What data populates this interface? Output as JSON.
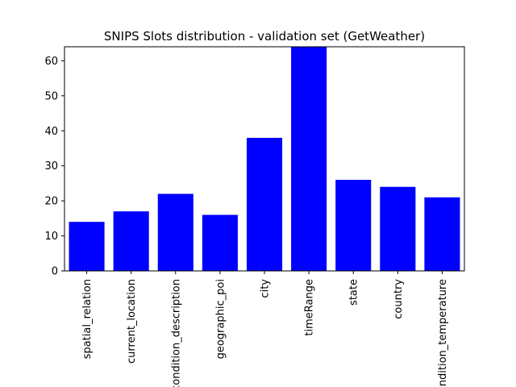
{
  "chart_data": {
    "type": "bar",
    "title": "SNIPS Slots distribution - validation set (GetWeather)",
    "xlabel": "",
    "ylabel": "",
    "categories": [
      "spatial_relation",
      "current_location",
      "condition_description",
      "geographic_poi",
      "city",
      "timeRange",
      "state",
      "country",
      "condition_temperature"
    ],
    "values": [
      14,
      17,
      22,
      16,
      38,
      64,
      26,
      24,
      21
    ],
    "ylim": [
      0,
      64
    ],
    "yticks": [
      0,
      10,
      20,
      30,
      40,
      50,
      60
    ],
    "grid": false,
    "bar_color": "#0000ff"
  }
}
